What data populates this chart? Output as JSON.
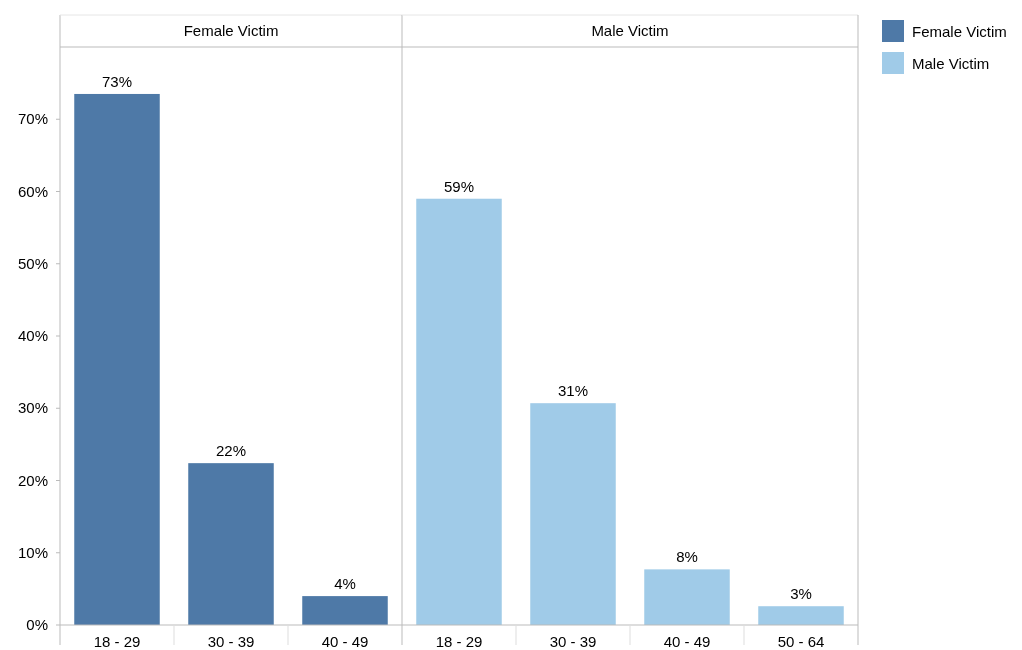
{
  "chart_data": [
    {
      "type": "bar",
      "title": "Female Victim",
      "categories": [
        "18 - 29",
        "30 - 39",
        "40 - 49"
      ],
      "series": [
        {
          "name": "Female Victim",
          "color": "#4e79a7",
          "values": [
            73.5,
            22.4,
            4.0
          ],
          "value_labels": [
            "73%",
            "22%",
            "4%"
          ]
        }
      ],
      "ylim": [
        0,
        80
      ],
      "yticks": [
        {
          "value": 0,
          "label": "0%"
        },
        {
          "value": 10,
          "label": "10%"
        },
        {
          "value": 20,
          "label": "20%"
        },
        {
          "value": 30,
          "label": "30%"
        },
        {
          "value": 40,
          "label": "40%"
        },
        {
          "value": 50,
          "label": "50%"
        },
        {
          "value": 60,
          "label": "60%"
        },
        {
          "value": 70,
          "label": "70%"
        }
      ],
      "legend": "right"
    },
    {
      "type": "bar",
      "title": "Male Victim",
      "categories": [
        "18 - 29",
        "30 - 39",
        "40 - 49",
        "50 - 64"
      ],
      "series": [
        {
          "name": "Male Victim",
          "color": "#a0cbe8",
          "values": [
            59.0,
            30.7,
            7.7,
            2.6
          ],
          "value_labels": [
            "59%",
            "31%",
            "8%",
            "3%"
          ]
        }
      ],
      "ylim": [
        0,
        80
      ],
      "tick_labels": "x",
      "legend": "right"
    }
  ]
}
